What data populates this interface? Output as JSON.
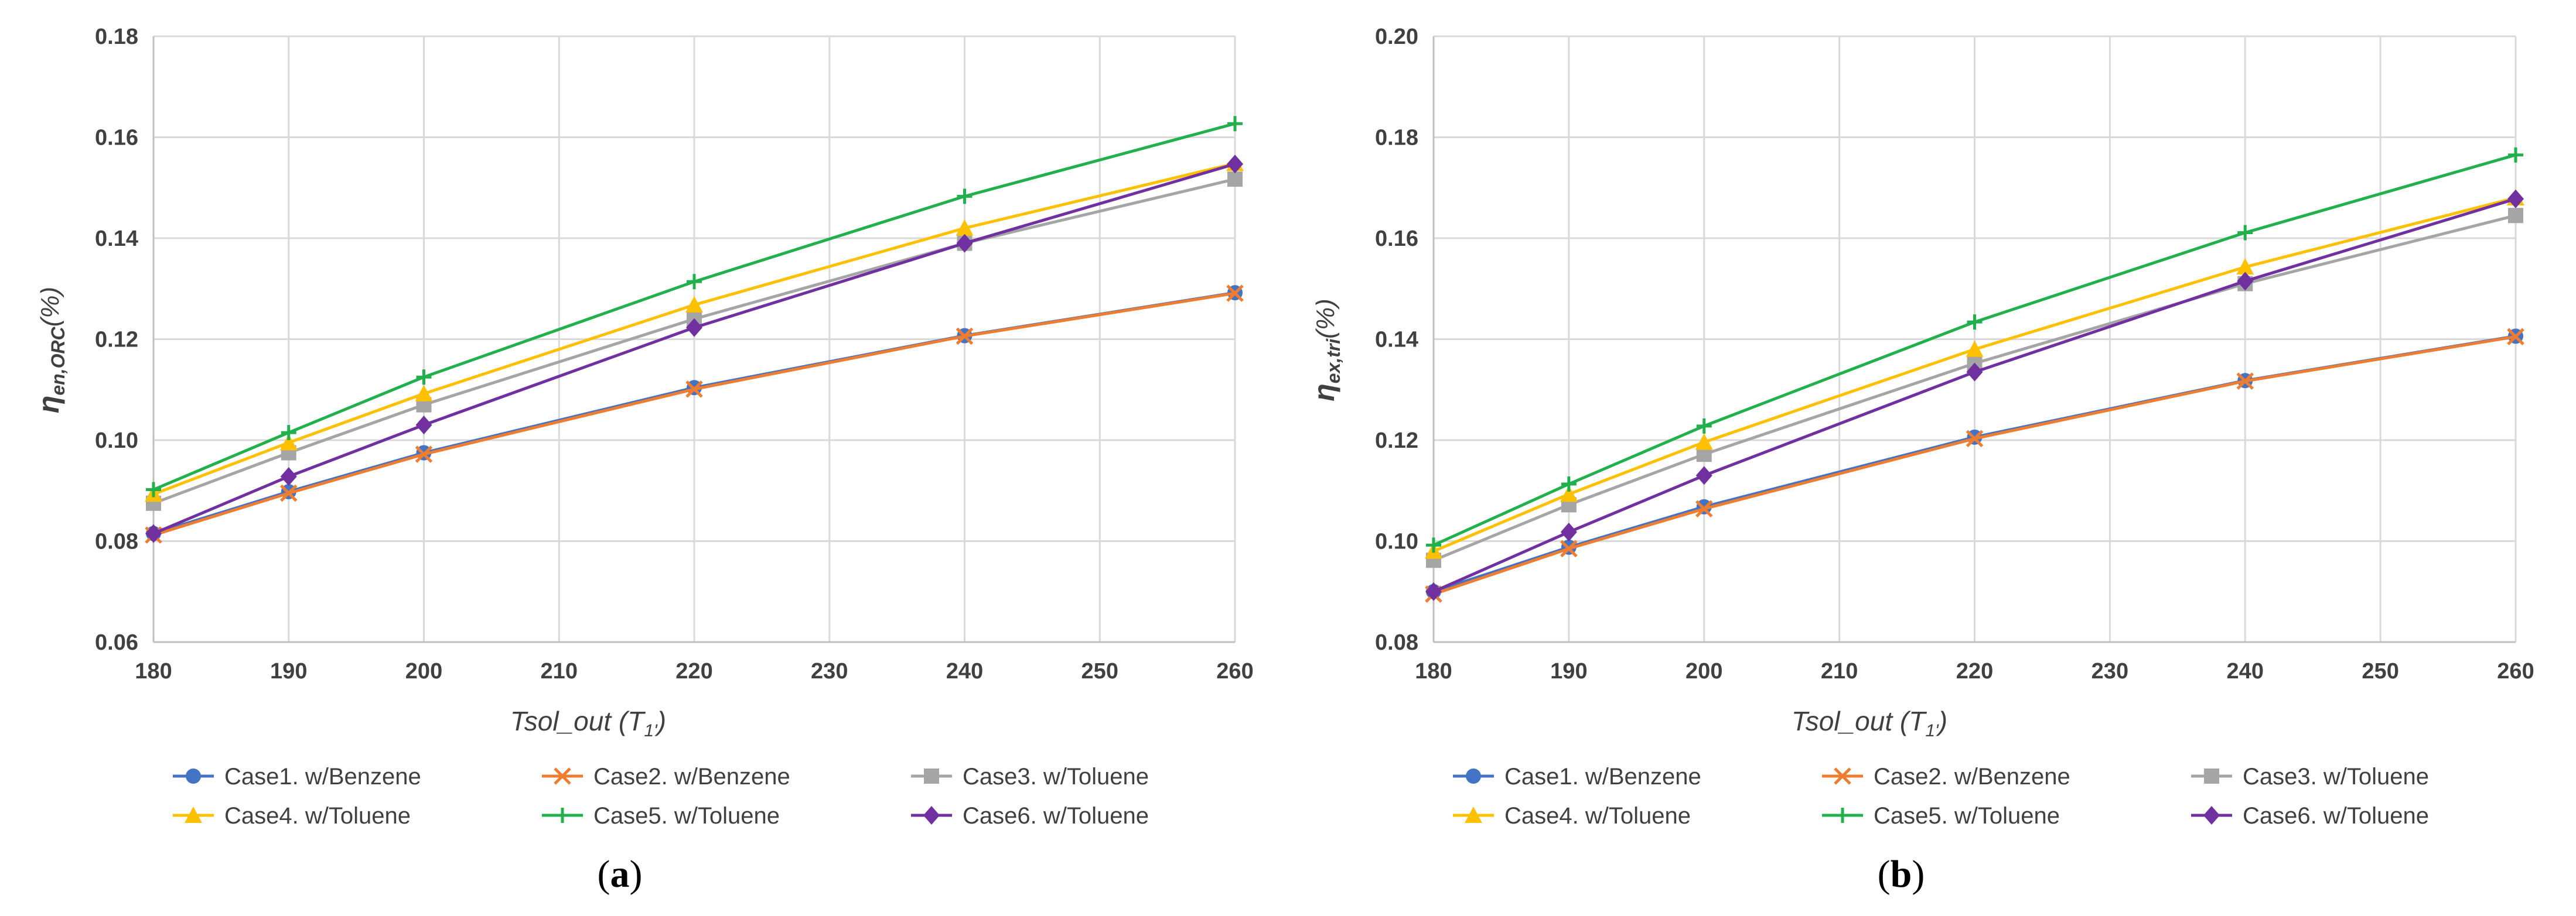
{
  "panels": [
    {
      "label_open": "(",
      "label_letter": "a",
      "label_close": ")",
      "chart_data": {
        "type": "line",
        "x": [
          180,
          190,
          200,
          220,
          240,
          260
        ],
        "xlim": [
          180,
          260
        ],
        "xticks": [
          180,
          190,
          200,
          210,
          220,
          230,
          240,
          250,
          260
        ],
        "ylim": [
          0.06,
          0.18
        ],
        "yticks": [
          "0.06",
          "0.08",
          "0.10",
          "0.12",
          "0.14",
          "0.16",
          "0.18"
        ],
        "xlabel_main": "Tsol_out (T",
        "xlabel_sub": "1'",
        "xlabel_end": ")",
        "ylabel_main": "η",
        "ylabel_sub": "en,ORC",
        "ylabel_end": "(%)",
        "grid": true,
        "legend_position": "bottom",
        "series": [
          {
            "name": "Case1. w/Benzene",
            "color": "#4472C4",
            "marker": "circle",
            "values": [
              0.0815,
              0.0898,
              0.0975,
              0.1104,
              0.1207,
              0.1292
            ]
          },
          {
            "name": "Case2. w/Benzene",
            "color": "#ED7D31",
            "marker": "x",
            "values": [
              0.0812,
              0.0895,
              0.0972,
              0.1101,
              0.1206,
              0.1291
            ]
          },
          {
            "name": "Case3. w/Toluene",
            "color": "#A5A5A5",
            "marker": "square",
            "values": [
              0.0875,
              0.0975,
              0.107,
              0.124,
              0.139,
              0.1517
            ]
          },
          {
            "name": "Case4. w/Toluene",
            "color": "#FFC000",
            "marker": "triangle",
            "values": [
              0.0893,
              0.0995,
              0.1092,
              0.1268,
              0.142,
              0.1548
            ]
          },
          {
            "name": "Case5. w/Toluene",
            "color": "#21B04B",
            "marker": "plus",
            "values": [
              0.0902,
              0.1015,
              0.1125,
              0.1314,
              0.1483,
              0.1627
            ]
          },
          {
            "name": "Case6. w/Toluene",
            "color": "#7030A0",
            "marker": "diamond",
            "values": [
              0.0815,
              0.0928,
              0.103,
              0.1223,
              0.139,
              0.1547
            ]
          }
        ]
      }
    },
    {
      "label_open": "(",
      "label_letter": "b",
      "label_close": ")",
      "chart_data": {
        "type": "line",
        "x": [
          180,
          190,
          200,
          220,
          240,
          260
        ],
        "xlim": [
          180,
          260
        ],
        "xticks": [
          180,
          190,
          200,
          210,
          220,
          230,
          240,
          250,
          260
        ],
        "ylim": [
          0.08,
          0.2
        ],
        "yticks": [
          "0.08",
          "0.10",
          "0.12",
          "0.14",
          "0.16",
          "0.18",
          "0.20"
        ],
        "xlabel_main": "Tsol_out (T",
        "xlabel_sub": "1'",
        "xlabel_end": ")",
        "ylabel_main": "η",
        "ylabel_sub": "ex,tri",
        "ylabel_end": "(%)",
        "grid": true,
        "legend_position": "bottom",
        "series": [
          {
            "name": "Case1. w/Benzene",
            "color": "#4472C4",
            "marker": "circle",
            "values": [
              0.09,
              0.0988,
              0.1068,
              0.1206,
              0.1318,
              0.1406
            ]
          },
          {
            "name": "Case2. w/Benzene",
            "color": "#ED7D31",
            "marker": "x",
            "values": [
              0.0895,
              0.0985,
              0.1064,
              0.1203,
              0.1317,
              0.1405
            ]
          },
          {
            "name": "Case3. w/Toluene",
            "color": "#A5A5A5",
            "marker": "square",
            "values": [
              0.0962,
              0.1072,
              0.1172,
              0.1352,
              0.151,
              0.1645
            ]
          },
          {
            "name": "Case4. w/Toluene",
            "color": "#FFC000",
            "marker": "triangle",
            "values": [
              0.098,
              0.1093,
              0.1196,
              0.138,
              0.1543,
              0.168
            ]
          },
          {
            "name": "Case5. w/Toluene",
            "color": "#21B04B",
            "marker": "plus",
            "values": [
              0.0992,
              0.1113,
              0.1228,
              0.1434,
              0.1611,
              0.1765
            ]
          },
          {
            "name": "Case6. w/Toluene",
            "color": "#7030A0",
            "marker": "diamond",
            "values": [
              0.09,
              0.1018,
              0.113,
              0.1335,
              0.1515,
              0.1678
            ]
          }
        ]
      }
    }
  ]
}
